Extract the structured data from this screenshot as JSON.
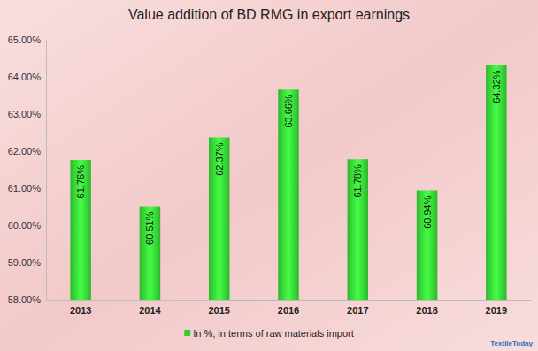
{
  "chart_data": {
    "type": "bar",
    "title": "Value addition of BD RMG in export earnings",
    "categories": [
      "2013",
      "2014",
      "2015",
      "2016",
      "2017",
      "2018",
      "2019"
    ],
    "series": [
      {
        "name": "In %, in terms of raw materials import",
        "color": "#33cc33",
        "values": [
          61.76,
          60.51,
          62.37,
          63.66,
          61.78,
          60.94,
          64.32
        ],
        "value_labels": [
          "61.76%",
          "60.51%",
          "62.37%",
          "63.66%",
          "61.78%",
          "60.94%",
          "64.32%"
        ]
      }
    ],
    "ylim": [
      58,
      65
    ],
    "yticks": [
      {
        "value": 58,
        "label": "58.00%"
      },
      {
        "value": 59,
        "label": "59.00%"
      },
      {
        "value": 60,
        "label": "60.00%"
      },
      {
        "value": 61,
        "label": "61.00%"
      },
      {
        "value": 62,
        "label": "62.00%"
      },
      {
        "value": 63,
        "label": "63.00%"
      },
      {
        "value": 64,
        "label": "64.00%"
      },
      {
        "value": 65,
        "label": "65.00%"
      }
    ],
    "grid": false,
    "data_labels": true,
    "legend": "bottom",
    "annotations": [
      "TextileToday"
    ]
  }
}
